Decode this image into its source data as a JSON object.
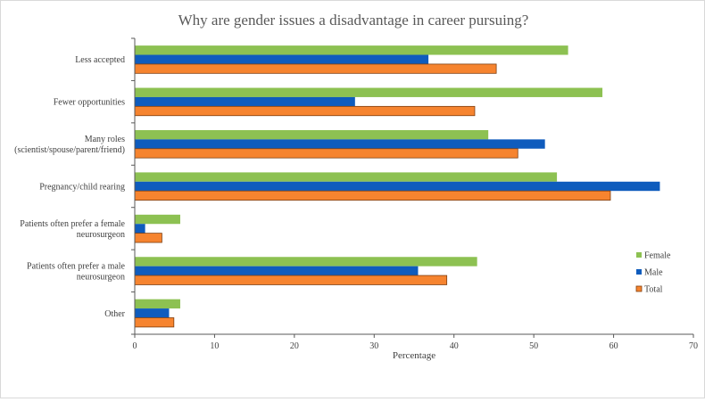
{
  "chart_data": {
    "type": "bar",
    "orientation": "horizontal",
    "title": "Why are gender issues a disadvantage in career pursuing?",
    "xlabel": "Percentage",
    "ylabel": "",
    "xlim": [
      0,
      70
    ],
    "xticks": [
      0,
      10,
      20,
      30,
      40,
      50,
      60,
      70
    ],
    "grid": false,
    "legend_position": "right",
    "categories": [
      [
        "Less accepted"
      ],
      [
        "Fewer opportunities"
      ],
      [
        "Many roles",
        "(scientist/spouse/parent/friend)"
      ],
      [
        "Pregnancy/child rearing"
      ],
      [
        "Patients often prefer a female",
        "neurosurgeon"
      ],
      [
        "Patients often prefer a male",
        "neurosurgeon"
      ],
      [
        "Other"
      ]
    ],
    "series": [
      {
        "name": "Female",
        "color": "#8dc152",
        "values": [
          54.3,
          58.6,
          44.3,
          52.9,
          5.7,
          42.9,
          5.7
        ]
      },
      {
        "name": "Male",
        "color": "#0f5cbd",
        "values": [
          36.8,
          27.6,
          51.4,
          65.8,
          1.3,
          35.5,
          4.3
        ]
      },
      {
        "name": "Total",
        "color": "#f6842f",
        "values": [
          45.3,
          42.6,
          48.0,
          59.6,
          3.4,
          39.1,
          4.9
        ]
      }
    ]
  }
}
